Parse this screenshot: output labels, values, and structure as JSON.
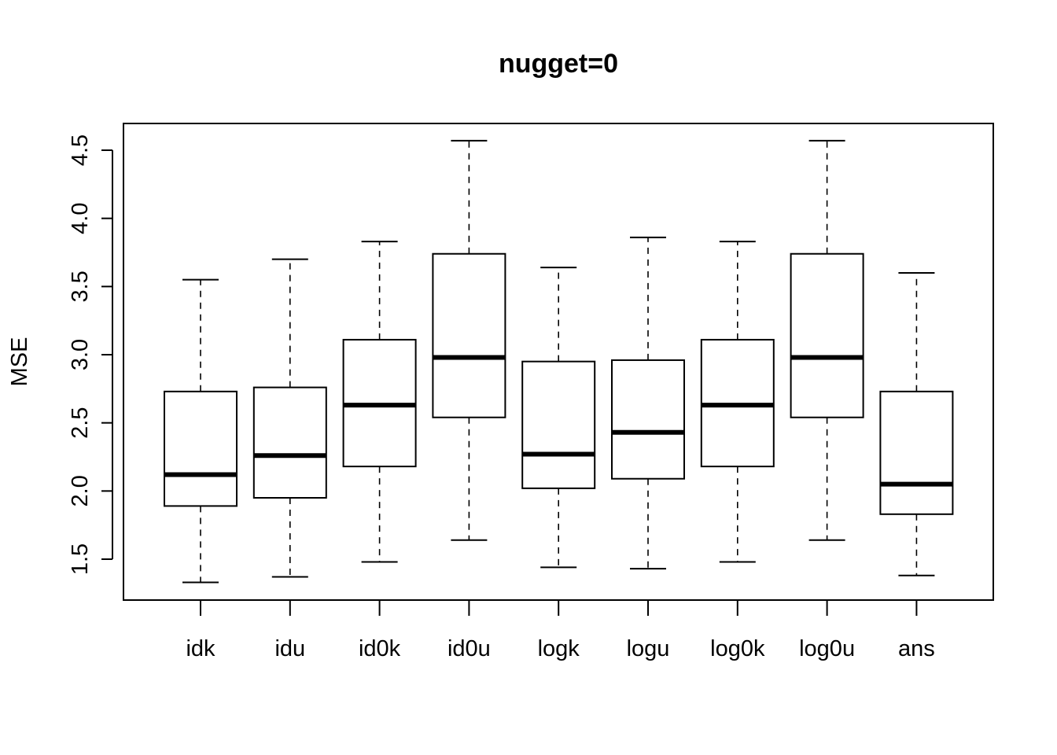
{
  "chart_data": {
    "type": "boxplot",
    "title": "nugget=0",
    "xlabel": "",
    "ylabel": "MSE",
    "ylim": [
      1.3,
      4.6
    ],
    "yticks": [
      "1.5",
      "2.0",
      "2.5",
      "3.0",
      "3.5",
      "4.0",
      "4.5"
    ],
    "categories": [
      "idk",
      "idu",
      "id0k",
      "id0u",
      "logk",
      "logu",
      "log0k",
      "log0u",
      "ans"
    ],
    "boxes": [
      {
        "name": "idk",
        "min": 1.33,
        "q1": 1.89,
        "median": 2.12,
        "q3": 2.73,
        "max": 3.55
      },
      {
        "name": "idu",
        "min": 1.37,
        "q1": 1.95,
        "median": 2.26,
        "q3": 2.76,
        "max": 3.7
      },
      {
        "name": "id0k",
        "min": 1.48,
        "q1": 2.18,
        "median": 2.63,
        "q3": 3.11,
        "max": 3.83
      },
      {
        "name": "id0u",
        "min": 1.64,
        "q1": 2.54,
        "median": 2.98,
        "q3": 3.74,
        "max": 4.57
      },
      {
        "name": "logk",
        "min": 1.44,
        "q1": 2.02,
        "median": 2.27,
        "q3": 2.95,
        "max": 3.64
      },
      {
        "name": "logu",
        "min": 1.43,
        "q1": 2.09,
        "median": 2.43,
        "q3": 2.96,
        "max": 3.86
      },
      {
        "name": "log0k",
        "min": 1.48,
        "q1": 2.18,
        "median": 2.63,
        "q3": 3.11,
        "max": 3.83
      },
      {
        "name": "log0u",
        "min": 1.64,
        "q1": 2.54,
        "median": 2.98,
        "q3": 3.74,
        "max": 4.57
      },
      {
        "name": "ans",
        "min": 1.38,
        "q1": 1.83,
        "median": 2.05,
        "q3": 2.73,
        "max": 3.6
      }
    ],
    "grid": false,
    "legend": "none"
  }
}
